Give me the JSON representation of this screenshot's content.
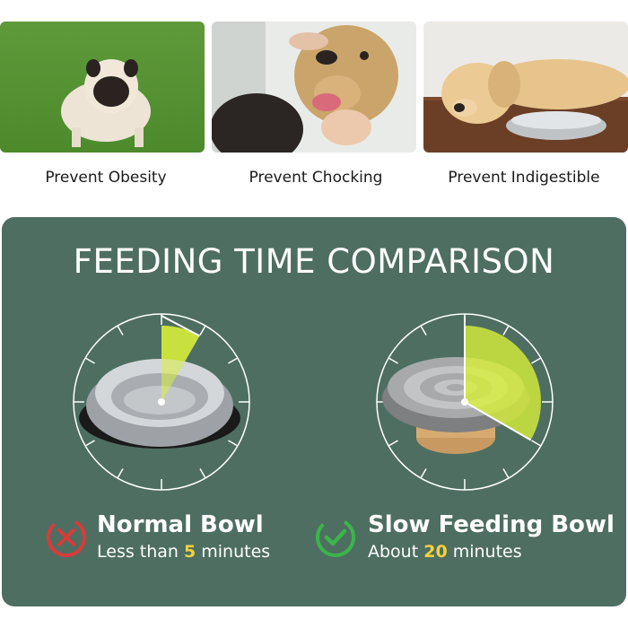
{
  "photos": [
    {
      "caption": "Prevent Obesity",
      "subject": "pug-photo"
    },
    {
      "caption": "Prevent Chocking",
      "subject": "golden-retriever-photo"
    },
    {
      "caption": "Prevent Indigestible",
      "subject": "labrador-with-bowl-photo"
    }
  ],
  "comparison": {
    "title": "FEEDING TIME COMPARISON",
    "normal": {
      "name": "Normal Bowl",
      "time_prefix": "Less than ",
      "time_value": "5",
      "time_suffix": " minutes",
      "status_icon": "x-icon",
      "feeding_minutes": 5
    },
    "slow": {
      "name": "Slow Feeding Bowl",
      "time_prefix": "About ",
      "time_value": "20",
      "time_suffix": " minutes",
      "status_icon": "check-icon",
      "feeding_minutes": 20
    },
    "colors": {
      "panel": "#4e6e62",
      "highlight": "#f2d23a",
      "sector": "#d8f03a",
      "x_red": "#d93a3a",
      "check_green": "#3bb54a"
    }
  }
}
